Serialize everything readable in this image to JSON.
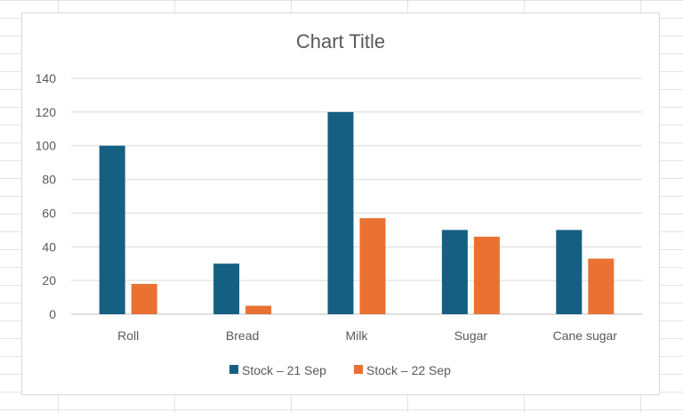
{
  "chart_data": {
    "type": "bar",
    "title": "Chart Title",
    "categories": [
      "Roll",
      "Bread",
      "Milk",
      "Sugar",
      "Cane sugar"
    ],
    "series": [
      {
        "name": "Stock – 21 Sep",
        "color": "#156082",
        "values": [
          100,
          30,
          120,
          50,
          50
        ]
      },
      {
        "name": "Stock – 22 Sep",
        "color": "#e97132",
        "values": [
          18,
          5,
          57,
          46,
          33
        ]
      }
    ],
    "yticks": [
      "0",
      "20",
      "40",
      "60",
      "80",
      "100",
      "120",
      "140"
    ],
    "ylim": [
      0,
      140
    ],
    "grid": true,
    "legend_position": "bottom",
    "xlabel": "",
    "ylabel": ""
  }
}
